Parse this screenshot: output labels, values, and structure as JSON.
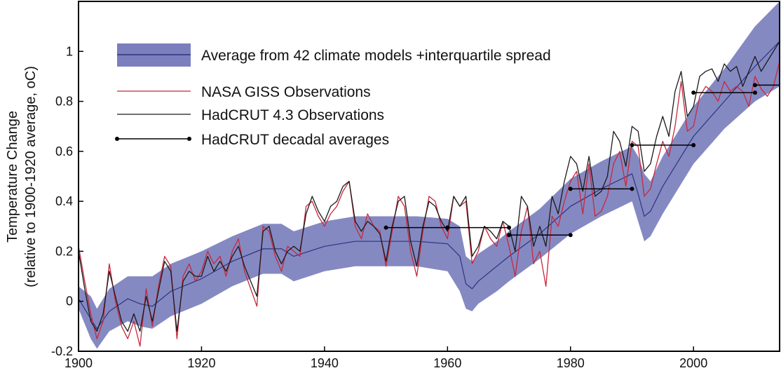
{
  "chart_data": {
    "type": "line",
    "title": "",
    "xlabel": "",
    "ylabel": "Temperature Change",
    "ylabel_sub": "(relative to 1900-1920 average, oC)",
    "xlim": [
      1900,
      2014
    ],
    "ylim": [
      -0.2,
      1.2
    ],
    "x_ticks": [
      1900,
      1920,
      1940,
      1960,
      1980,
      2000
    ],
    "y_ticks": [
      -0.2,
      0,
      0.2,
      0.4,
      0.6,
      0.8,
      1
    ],
    "grid": false,
    "legend_position": "top-left",
    "colors": {
      "band": "#7b7fbd",
      "model_line": "#2f3380",
      "giss": "#c8283c",
      "hadcrut": "#1a1a1a",
      "decadal": "#000000"
    },
    "legend": [
      {
        "key": "model",
        "label": "Average from 42 climate models +interquartile spread"
      },
      {
        "key": "giss",
        "label": "NASA GISS Observations"
      },
      {
        "key": "hadcrut",
        "label": "HadCRUT 4.3 Observations"
      },
      {
        "key": "decadal",
        "label": "HadCRUT decadal averages"
      }
    ],
    "model_band": {
      "name": "Average from 42 climate models +interquartile spread",
      "x": [
        1900,
        1902,
        1903,
        1905,
        1908,
        1910,
        1912,
        1915,
        1918,
        1920,
        1925,
        1930,
        1933,
        1935,
        1940,
        1945,
        1950,
        1955,
        1960,
        1962,
        1963,
        1964,
        1965,
        1968,
        1970,
        1975,
        1980,
        1985,
        1990,
        1991,
        1992,
        1993,
        1995,
        2000,
        2005,
        2010,
        2014
      ],
      "mean": [
        0.01,
        -0.07,
        -0.11,
        -0.04,
        0.01,
        -0.01,
        -0.02,
        0.04,
        0.07,
        0.09,
        0.16,
        0.21,
        0.21,
        0.18,
        0.22,
        0.24,
        0.24,
        0.24,
        0.23,
        0.18,
        0.07,
        0.05,
        0.08,
        0.14,
        0.18,
        0.27,
        0.38,
        0.45,
        0.51,
        0.43,
        0.34,
        0.36,
        0.46,
        0.66,
        0.8,
        0.94,
        1.04
      ],
      "upper": [
        0.06,
        0.02,
        -0.03,
        0.05,
        0.1,
        0.1,
        0.1,
        0.15,
        0.18,
        0.2,
        0.26,
        0.31,
        0.31,
        0.28,
        0.32,
        0.34,
        0.34,
        0.34,
        0.33,
        0.3,
        0.18,
        0.16,
        0.19,
        0.24,
        0.28,
        0.37,
        0.49,
        0.56,
        0.62,
        0.58,
        0.51,
        0.48,
        0.58,
        0.78,
        0.93,
        1.1,
        1.2
      ],
      "lower": [
        -0.03,
        -0.15,
        -0.19,
        -0.12,
        -0.08,
        -0.1,
        -0.11,
        -0.06,
        -0.03,
        -0.01,
        0.06,
        0.11,
        0.11,
        0.08,
        0.12,
        0.14,
        0.14,
        0.14,
        0.12,
        0.04,
        -0.03,
        -0.04,
        -0.01,
        0.04,
        0.08,
        0.17,
        0.27,
        0.34,
        0.4,
        0.32,
        0.24,
        0.26,
        0.35,
        0.55,
        0.69,
        0.8,
        0.86
      ]
    },
    "series": [
      {
        "key": "giss",
        "name": "NASA GISS Observations",
        "x": [
          1900,
          1901,
          1902,
          1903,
          1904,
          1905,
          1906,
          1907,
          1908,
          1909,
          1910,
          1911,
          1912,
          1913,
          1914,
          1915,
          1916,
          1917,
          1918,
          1919,
          1920,
          1921,
          1922,
          1923,
          1924,
          1925,
          1926,
          1927,
          1928,
          1929,
          1930,
          1931,
          1932,
          1933,
          1934,
          1935,
          1936,
          1937,
          1938,
          1939,
          1940,
          1941,
          1942,
          1943,
          1944,
          1945,
          1946,
          1947,
          1948,
          1949,
          1950,
          1951,
          1952,
          1953,
          1954,
          1955,
          1956,
          1957,
          1958,
          1959,
          1960,
          1961,
          1962,
          1963,
          1964,
          1965,
          1966,
          1967,
          1968,
          1969,
          1970,
          1971,
          1972,
          1973,
          1974,
          1975,
          1976,
          1977,
          1978,
          1979,
          1980,
          1981,
          1982,
          1983,
          1984,
          1985,
          1986,
          1987,
          1988,
          1989,
          1990,
          1991,
          1992,
          1993,
          1994,
          1995,
          1996,
          1997,
          1998,
          1999,
          2000,
          2001,
          2002,
          2003,
          2004,
          2005,
          2006,
          2007,
          2008,
          2009,
          2010,
          2011,
          2012,
          2013,
          2014
        ],
        "y": [
          0.22,
          0.08,
          -0.05,
          -0.15,
          -0.08,
          0.15,
          0.0,
          -0.1,
          -0.15,
          -0.08,
          -0.18,
          0.05,
          -0.1,
          0.06,
          0.18,
          0.14,
          -0.15,
          0.1,
          0.15,
          0.08,
          0.12,
          0.2,
          0.15,
          0.18,
          0.1,
          0.2,
          0.25,
          0.12,
          0.05,
          -0.02,
          0.3,
          0.28,
          0.18,
          0.12,
          0.22,
          0.2,
          0.18,
          0.38,
          0.4,
          0.34,
          0.3,
          0.35,
          0.38,
          0.44,
          0.48,
          0.3,
          0.25,
          0.35,
          0.3,
          0.28,
          0.14,
          0.28,
          0.42,
          0.38,
          0.2,
          0.1,
          0.28,
          0.42,
          0.4,
          0.3,
          0.25,
          0.42,
          0.38,
          0.4,
          0.15,
          0.2,
          0.3,
          0.25,
          0.22,
          0.32,
          0.22,
          0.1,
          0.28,
          0.38,
          0.15,
          0.2,
          0.06,
          0.34,
          0.3,
          0.4,
          0.48,
          0.52,
          0.35,
          0.55,
          0.34,
          0.36,
          0.42,
          0.55,
          0.6,
          0.46,
          0.64,
          0.62,
          0.42,
          0.45,
          0.55,
          0.64,
          0.58,
          0.7,
          0.88,
          0.68,
          0.7,
          0.82,
          0.86,
          0.84,
          0.8,
          0.88,
          0.84,
          0.86,
          0.84,
          0.78,
          0.9,
          0.85,
          0.82,
          0.86,
          0.96
        ]
      },
      {
        "key": "hadcrut",
        "name": "HadCRUT 4.3 Observations",
        "x": [
          1900,
          1901,
          1902,
          1903,
          1904,
          1905,
          1906,
          1907,
          1908,
          1909,
          1910,
          1911,
          1912,
          1913,
          1914,
          1915,
          1916,
          1917,
          1918,
          1919,
          1920,
          1921,
          1922,
          1923,
          1924,
          1925,
          1926,
          1927,
          1928,
          1929,
          1930,
          1931,
          1932,
          1933,
          1934,
          1935,
          1936,
          1937,
          1938,
          1939,
          1940,
          1941,
          1942,
          1943,
          1944,
          1945,
          1946,
          1947,
          1948,
          1949,
          1950,
          1951,
          1952,
          1953,
          1954,
          1955,
          1956,
          1957,
          1958,
          1959,
          1960,
          1961,
          1962,
          1963,
          1964,
          1965,
          1966,
          1967,
          1968,
          1969,
          1970,
          1971,
          1972,
          1973,
          1974,
          1975,
          1976,
          1977,
          1978,
          1979,
          1980,
          1981,
          1982,
          1983,
          1984,
          1985,
          1986,
          1987,
          1988,
          1989,
          1990,
          1991,
          1992,
          1993,
          1994,
          1995,
          1996,
          1997,
          1998,
          1999,
          2000,
          2001,
          2002,
          2003,
          2004,
          2005,
          2006,
          2007,
          2008,
          2009,
          2010,
          2011,
          2012,
          2013,
          2014
        ],
        "y": [
          0.2,
          0.05,
          -0.08,
          -0.12,
          -0.05,
          0.12,
          0.02,
          -0.08,
          -0.12,
          -0.05,
          -0.12,
          0.02,
          -0.08,
          0.04,
          0.16,
          0.12,
          -0.12,
          0.08,
          0.12,
          0.1,
          0.1,
          0.18,
          0.12,
          0.16,
          0.12,
          0.18,
          0.22,
          0.14,
          0.08,
          0.02,
          0.28,
          0.3,
          0.2,
          0.15,
          0.2,
          0.22,
          0.2,
          0.35,
          0.42,
          0.36,
          0.32,
          0.38,
          0.4,
          0.46,
          0.48,
          0.32,
          0.28,
          0.32,
          0.3,
          0.27,
          0.16,
          0.3,
          0.4,
          0.42,
          0.24,
          0.14,
          0.3,
          0.4,
          0.38,
          0.32,
          0.28,
          0.42,
          0.38,
          0.42,
          0.18,
          0.22,
          0.3,
          0.28,
          0.25,
          0.32,
          0.3,
          0.2,
          0.42,
          0.38,
          0.22,
          0.3,
          0.22,
          0.42,
          0.35,
          0.48,
          0.58,
          0.55,
          0.44,
          0.58,
          0.42,
          0.44,
          0.5,
          0.68,
          0.64,
          0.54,
          0.7,
          0.68,
          0.52,
          0.55,
          0.66,
          0.74,
          0.66,
          0.84,
          0.92,
          0.74,
          0.78,
          0.9,
          0.92,
          0.93,
          0.88,
          0.95,
          0.92,
          0.94,
          0.86,
          0.92,
          0.98,
          0.92,
          0.96,
          1.0,
          1.04
        ]
      }
    ],
    "decadal_averages": {
      "name": "HadCRUT decadal averages",
      "segments": [
        {
          "x_start": 1950,
          "x_end": 1960,
          "y": 0.295
        },
        {
          "x_start": 1960,
          "x_end": 1970,
          "y": 0.295
        },
        {
          "x_start": 1970,
          "x_end": 1980,
          "y": 0.265
        },
        {
          "x_start": 1980,
          "x_end": 1990,
          "y": 0.45
        },
        {
          "x_start": 1990,
          "x_end": 2000,
          "y": 0.625
        },
        {
          "x_start": 2000,
          "x_end": 2010,
          "y": 0.835
        },
        {
          "x_start": 2010,
          "x_end": 2020,
          "y": 0.865
        }
      ]
    }
  }
}
